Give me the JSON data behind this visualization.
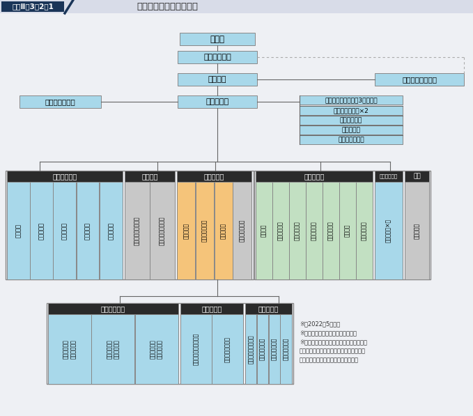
{
  "title_label": "図表Ⅱ－3－2－1",
  "title_text": "防衛省・自衛隊の組織図",
  "bg_color": "#eef0f4",
  "title_bar_color": "#d8dce8",
  "title_box_color": "#1a3558",
  "blue_light": "#a8d8ea",
  "blue_border": "#7ab0cc",
  "dark_header": "#2a2a2a",
  "green_light": "#c2e0c2",
  "orange_light": "#f5c47a",
  "gray_light": "#c8c8c8",
  "line_col": "#666666",
  "dash_col": "#aaaaaa",
  "notes": [
    "※　2022年5月時点",
    "※　臨時又は特例で置くものを除く",
    "※　「部隊及び機関」、「共同の部隊」及",
    "　　び「共同の機関」は、国家行政組織法",
    "　　上の「特別の機関」に整理される"
  ],
  "naikaku": "内　閣",
  "naikaku_soridaijin": "内閣総理大臣",
  "bouei_daijin": "防衛大臣",
  "kokka_anzen": "国家安全保障会議",
  "bouei_fuku": "防衛副大臣",
  "bouei_hosa": "防衛大臣補佐官",
  "seisaku_san": "防衛大臣政策参与（3人以内）",
  "seimukan": "防衛大臣政務官×2",
  "jimu_jikan": "防衛事務次官",
  "shingikan": "防衛審議官",
  "hishokan": "防衛大臣秘書官",
  "h1_honsha": "本省内部部局",
  "h1_items": [
    "大臣官房",
    "防衛政策局",
    "整備計画局",
    "人事教育局",
    "地方協力局"
  ],
  "h2_shingi": "審議会等",
  "h2_items": [
    "防衛施設中央審議会",
    "自衛隊員倫理審査会"
  ],
  "h3_shisetsu": "施設等機関",
  "h3_items": [
    "防衛研究所",
    "防衛医科大学校",
    "防衛大学校",
    "防衛人事審議会"
  ],
  "h3_colors": [
    "orange",
    "orange",
    "orange",
    "gray"
  ],
  "h4_tokubetsu": "特別の機関",
  "h4_items": [
    "防衛会議",
    "統合幕僚監部",
    "陸上幕僚監部",
    "海上幕僚監部",
    "航空幕僚監部",
    "情報本部",
    "防衛監察本部"
  ],
  "h5_chiho": "地方支分部局",
  "h5_items": [
    "地方防衛局×８"
  ],
  "h6_gaiku": "外局",
  "h6_items": [
    "防衛装備庁"
  ],
  "b1_header": "部隊及び機関",
  "b1_items": [
    "陸上自衛隊の\n部隊及び機関",
    "海上自衛隊の\n部隊及び機関",
    "航空自衛隊の\n部隊及び機関"
  ],
  "b2_header": "共同の部隊",
  "b2_items": [
    "自衛隊サイバー防衛隊",
    "自衛隊情報保全隊"
  ],
  "b3_header": "共同の機関",
  "b3_items": [
    "自衛隊地方協力本部",
    "自衛隊中央病院",
    "自衛隊体育学校",
    "自衛隊地区病院"
  ]
}
